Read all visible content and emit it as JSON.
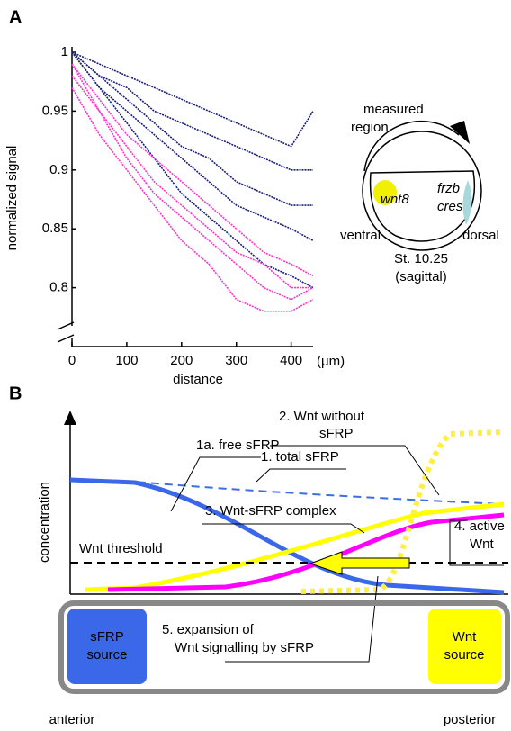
{
  "panels": {
    "a": "A",
    "b": "B"
  },
  "chart_data": {
    "type": "line",
    "x_label": "distance",
    "x_unit": "(μm)",
    "y_label": "normalized signal",
    "x": [
      0,
      50,
      100,
      150,
      200,
      250,
      300,
      350,
      400,
      440
    ],
    "series": [
      {
        "color": "#1a1f7a",
        "values": [
          1,
          0.99,
          0.98,
          0.97,
          0.96,
          0.95,
          0.94,
          0.93,
          0.92,
          0.95
        ]
      },
      {
        "color": "#1a1f7a",
        "values": [
          1,
          0.98,
          0.97,
          0.95,
          0.94,
          0.93,
          0.92,
          0.91,
          0.9,
          0.9
        ]
      },
      {
        "color": "#1a1f7a",
        "values": [
          1,
          0.98,
          0.96,
          0.94,
          0.92,
          0.91,
          0.89,
          0.88,
          0.87,
          0.87
        ]
      },
      {
        "color": "#1a1f7a",
        "values": [
          1,
          0.97,
          0.95,
          0.93,
          0.91,
          0.89,
          0.87,
          0.86,
          0.85,
          0.84
        ]
      },
      {
        "color": "#1a1f7a",
        "values": [
          1,
          0.97,
          0.94,
          0.91,
          0.88,
          0.86,
          0.84,
          0.82,
          0.81,
          0.8
        ]
      },
      {
        "color": "#ff33cc",
        "values": [
          0.99,
          0.96,
          0.93,
          0.91,
          0.89,
          0.87,
          0.85,
          0.83,
          0.82,
          0.81
        ]
      },
      {
        "color": "#ff33cc",
        "values": [
          0.99,
          0.95,
          0.92,
          0.89,
          0.87,
          0.85,
          0.83,
          0.82,
          0.8,
          0.8
        ]
      },
      {
        "color": "#ff33cc",
        "values": [
          0.98,
          0.95,
          0.91,
          0.88,
          0.86,
          0.84,
          0.82,
          0.8,
          0.79,
          0.8
        ]
      },
      {
        "color": "#ff33cc",
        "values": [
          0.97,
          0.93,
          0.9,
          0.87,
          0.84,
          0.82,
          0.79,
          0.78,
          0.78,
          0.79
        ]
      }
    ],
    "xlim": [
      0,
      440
    ],
    "ylim": [
      0.75,
      1
    ],
    "xticks": [
      0,
      100,
      200,
      300,
      400
    ],
    "yticks": [
      1,
      0.95,
      0.9,
      0.85,
      0.8
    ]
  },
  "embryo": {
    "title": [
      "measured",
      "region"
    ],
    "left_marker": "wnt8",
    "right_markers": [
      "frzb",
      "cres"
    ],
    "ventral": "ventral",
    "dorsal": "dorsal",
    "stage": "St. 10.25",
    "view": "(sagittal)"
  },
  "schematic": {
    "y_label": "concentration",
    "wnt_without": [
      "2. Wnt without",
      "sFRP"
    ],
    "free_sfrp": "1a. free sFRP",
    "total_sfrp": "1. total sFRP",
    "complex": "3. Wnt-sFRP complex",
    "active_wnt": [
      "4. active",
      "Wnt"
    ],
    "threshold": "Wnt threshold",
    "sfrp_source": [
      "sFRP",
      "source"
    ],
    "expansion": [
      "5. expansion of",
      "Wnt signalling by sFRP"
    ],
    "wnt_source": [
      "Wnt",
      "source"
    ],
    "anterior": "anterior",
    "posterior": "posterior"
  }
}
